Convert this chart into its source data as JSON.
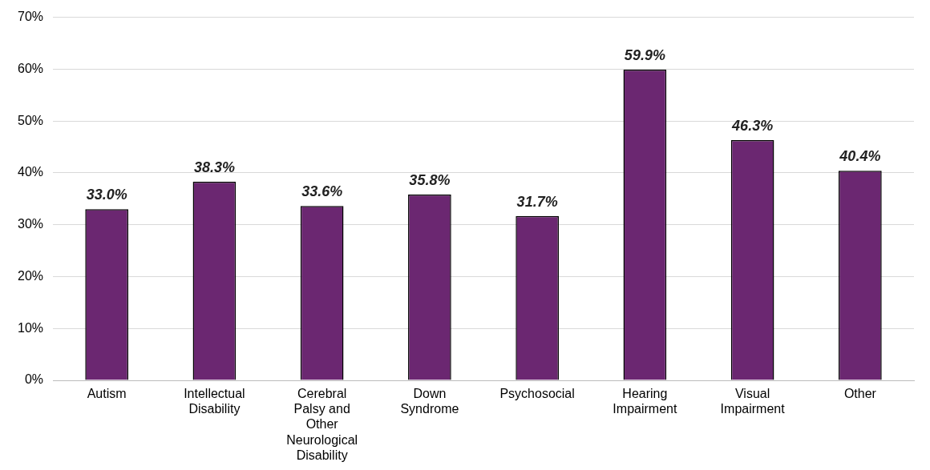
{
  "chart_data": {
    "type": "bar",
    "categories": [
      "Autism",
      "Intellectual Disability",
      "Cerebral Palsy and Other Neurological Disability",
      "Down Syndrome",
      "Psychosocial",
      "Hearing Impairment",
      "Visual Impairment",
      "Other"
    ],
    "values": [
      33.0,
      38.3,
      33.6,
      35.8,
      31.7,
      59.9,
      46.3,
      40.4
    ],
    "value_labels": [
      "33.0%",
      "38.3%",
      "33.6%",
      "35.8%",
      "31.7%",
      "59.9%",
      "46.3%",
      "40.4%"
    ],
    "color": "#6b2771",
    "ylim": [
      0,
      70
    ],
    "yticks": [
      {
        "value": 0,
        "label": "0%"
      },
      {
        "value": 10,
        "label": "10%"
      },
      {
        "value": 20,
        "label": "20%"
      },
      {
        "value": 30,
        "label": "30%"
      },
      {
        "value": 40,
        "label": "40%"
      },
      {
        "value": 50,
        "label": "50%"
      },
      {
        "value": 60,
        "label": "60%"
      },
      {
        "value": 70,
        "label": "70%"
      }
    ],
    "grid": "y",
    "legend": false
  }
}
